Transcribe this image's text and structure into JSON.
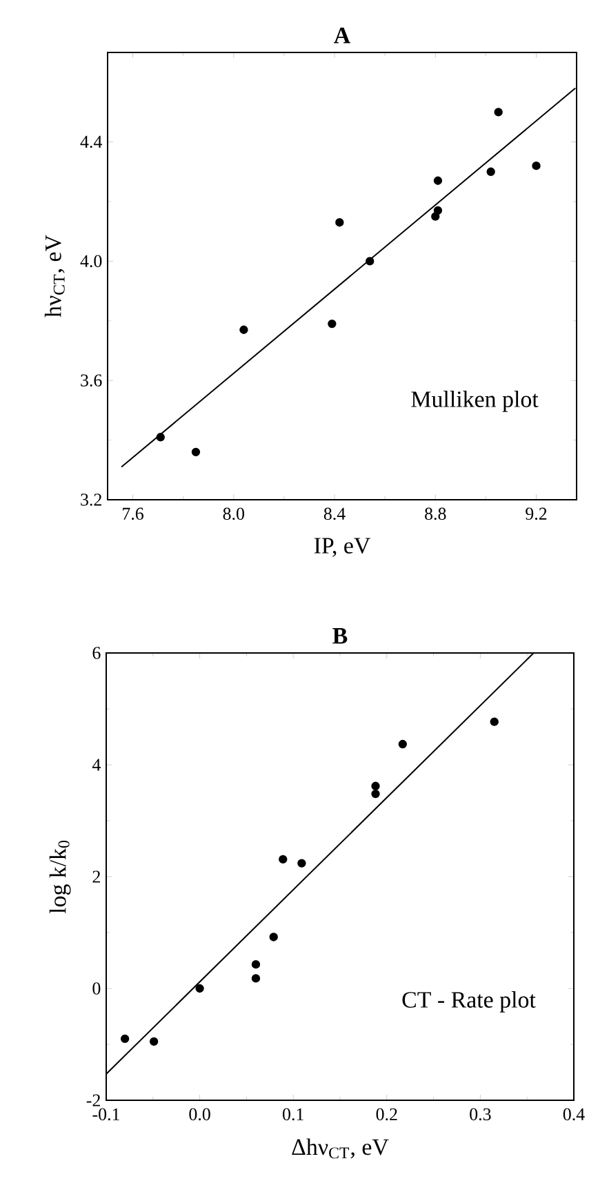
{
  "chart_data": [
    {
      "type": "scatter",
      "title": "A",
      "xlabel": "IP, eV",
      "ylabel": "hν$_{CT}$, eV",
      "annotations": [
        "Mulliken plot"
      ],
      "xlim": [
        7.5,
        9.36
      ],
      "ylim": [
        3.2,
        4.7
      ],
      "xticks": [
        7.6,
        {
          "value": 8.0,
          "label": "8.0"
        },
        8.4,
        8.8,
        9.2
      ],
      "yticks": [
        3.2,
        3.6,
        {
          "value": 4.0,
          "label": "4.0"
        },
        4.4
      ],
      "series": [
        {
          "type": "scatter",
          "color": "#000000",
          "marker": "circle",
          "x": [
            7.71,
            7.85,
            8.04,
            8.39,
            8.42,
            8.54,
            8.81,
            8.81,
            8.8,
            9.02,
            9.05,
            9.2
          ],
          "values": [
            3.41,
            3.36,
            3.77,
            3.79,
            4.13,
            4.0,
            4.27,
            4.17,
            4.15,
            4.3,
            4.5,
            4.32
          ]
        },
        {
          "type": "line",
          "color": "#000000",
          "line_style": "solid",
          "x": [
            7.555,
            9.355
          ],
          "values": [
            3.31,
            4.58
          ]
        }
      ]
    },
    {
      "type": "scatter",
      "title": "B",
      "xlabel": "Δhν$_{CT}$, eV",
      "ylabel": "log k/k$_{0}$",
      "annotations": [
        "CT - Rate  plot"
      ],
      "xlim": [
        -0.1,
        0.4
      ],
      "ylim": [
        -2,
        6
      ],
      "xticks": [
        -0.1,
        {
          "value": 0.0,
          "label": "0.0"
        },
        0.1,
        0.2,
        0.3,
        0.4
      ],
      "yticks": [
        -2,
        0,
        2,
        4,
        6
      ],
      "series": [
        {
          "type": "scatter",
          "color": "#000000",
          "marker": "circle",
          "x": [
            -0.08,
            -0.049,
            0.0,
            0.06,
            0.06,
            0.079,
            0.089,
            0.109,
            0.188,
            0.188,
            0.217,
            0.315
          ],
          "values": [
            -0.9,
            -0.95,
            0.0,
            0.43,
            0.18,
            0.92,
            2.31,
            2.24,
            3.62,
            3.48,
            4.37,
            4.77
          ]
        },
        {
          "type": "line",
          "color": "#000000",
          "line_style": "solid",
          "x": [
            -0.1,
            0.357
          ],
          "values": [
            -1.53,
            6.0
          ]
        }
      ]
    }
  ]
}
